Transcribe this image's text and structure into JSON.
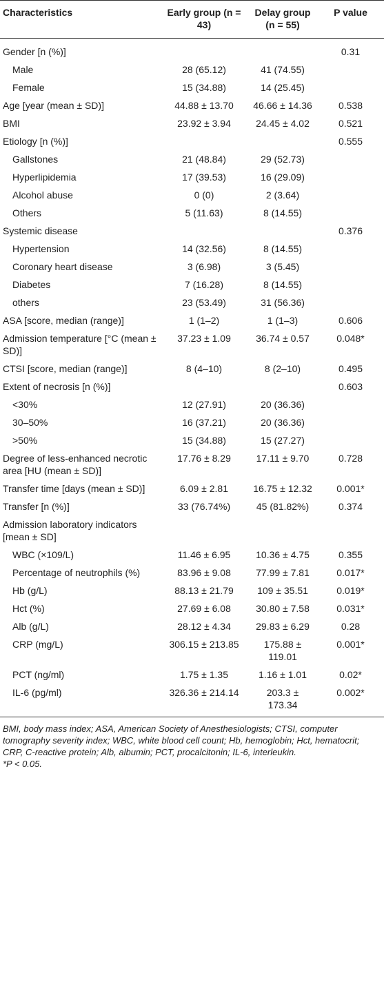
{
  "table": {
    "header": [
      "Characteristics",
      "Early group (n = 43)",
      "Delay group (n = 55)",
      "P value"
    ],
    "rows": [
      {
        "label": "Gender [n (%)]",
        "p": "0.31",
        "items": [
          {
            "label": "Male",
            "early": "28 (65.12)",
            "delay": "41 (74.55)"
          },
          {
            "label": "Female",
            "early": "15 (34.88)",
            "delay": "14 (25.45)"
          }
        ]
      },
      {
        "label": "Age [year (mean ± SD)]",
        "early": "44.88 ± 13.70",
        "delay": "46.66 ± 14.36",
        "p": "0.538"
      },
      {
        "label": "BMI",
        "early": "23.92 ± 3.94",
        "delay": "24.45 ± 4.02",
        "p": "0.521"
      },
      {
        "label": "Etiology [n (%)]",
        "p": "0.555",
        "items": [
          {
            "label": "Gallstones",
            "early": "21 (48.84)",
            "delay": "29 (52.73)"
          },
          {
            "label": "Hyperlipidemia",
            "early": "17 (39.53)",
            "delay": "16 (29.09)"
          },
          {
            "label": "Alcohol abuse",
            "early": "0 (0)",
            "delay": "2 (3.64)"
          },
          {
            "label": "Others",
            "early": "5 (11.63)",
            "delay": "8 (14.55)"
          }
        ]
      },
      {
        "label": "Systemic disease",
        "p": "0.376",
        "items": [
          {
            "label": "Hypertension",
            "early": "14 (32.56)",
            "delay": "8 (14.55)"
          },
          {
            "label": "Coronary heart disease",
            "early": "3 (6.98)",
            "delay": "3 (5.45)"
          },
          {
            "label": "Diabetes",
            "early": "7 (16.28)",
            "delay": "8 (14.55)"
          },
          {
            "label": "others",
            "early": "23 (53.49)",
            "delay": "31 (56.36)"
          }
        ]
      },
      {
        "label": "ASA [score, median (range)]",
        "early": "1 (1–2)",
        "delay": "1 (1–3)",
        "p": "0.606"
      },
      {
        "label": "Admission temperature [°C (mean ± SD)]",
        "early": "37.23 ± 1.09",
        "delay": "36.74 ± 0.57",
        "p": "0.048*"
      },
      {
        "label": "CTSI [score, median (range)]",
        "early": "8 (4–10)",
        "delay": "8 (2–10)",
        "p": "0.495"
      },
      {
        "label": "Extent of necrosis [n (%)]",
        "p": "0.603",
        "items": [
          {
            "label": "<30%",
            "early": "12 (27.91)",
            "delay": "20 (36.36)"
          },
          {
            "label": "30–50%",
            "early": "16 (37.21)",
            "delay": "20 (36.36)"
          },
          {
            "label": ">50%",
            "early": "15 (34.88)",
            "delay": "15 (27.27)"
          }
        ]
      },
      {
        "label": "Degree of less-enhanced necrotic area [HU (mean ± SD)]",
        "early": "17.76 ± 8.29",
        "delay": "17.11 ± 9.70",
        "p": "0.728"
      },
      {
        "label": "Transfer time [days (mean ± SD)]",
        "early": "6.09 ± 2.81",
        "delay": "16.75 ± 12.32",
        "p": "0.001*"
      },
      {
        "label": "Transfer [n (%)]",
        "early": "33 (76.74%)",
        "delay": "45 (81.82%)",
        "p": "0.374"
      },
      {
        "label": "Admission laboratory indicators [mean ± SD]",
        "items": [
          {
            "label": "WBC (×109/L)",
            "early": "11.46 ± 6.95",
            "delay": "10.36 ± 4.75",
            "p": "0.355"
          },
          {
            "label": "Percentage of neutrophils (%)",
            "early": "83.96 ± 9.08",
            "delay": "77.99 ± 7.81",
            "p": "0.017*"
          },
          {
            "label": "Hb (g/L)",
            "early": "88.13 ± 21.79",
            "delay": "109 ± 35.51",
            "p": "0.019*"
          },
          {
            "label": "Hct (%)",
            "early": "27.69 ± 6.08",
            "delay": "30.80 ± 7.58",
            "p": "0.031*"
          },
          {
            "label": "Alb (g/L)",
            "early": "28.12 ± 4.34",
            "delay": "29.83 ± 6.29",
            "p": "0.28"
          },
          {
            "label": "CRP (mg/L)",
            "early": "306.15 ± 213.85",
            "delay": "175.88 ± 119.01",
            "p": "0.001*"
          },
          {
            "label": "PCT (ng/ml)",
            "early": "1.75 ± 1.35",
            "delay": "1.16 ± 1.01",
            "p": "0.02*"
          },
          {
            "label": "IL-6 (pg/ml)",
            "early": "326.36 ± 214.14",
            "delay": "203.3 ± 173.34",
            "p": "0.002*"
          }
        ]
      }
    ]
  },
  "footnotes": [
    "BMI, body mass index; ASA, American Society of Anesthesiologists; CTSI, computer tomography severity index; WBC, white blood cell count; Hb, hemoglobin; Hct, hematocrit; CRP, C-reactive protein; Alb, albumin; PCT, procalcitonin; IL-6, interleukin.",
    "*P < 0.05."
  ]
}
